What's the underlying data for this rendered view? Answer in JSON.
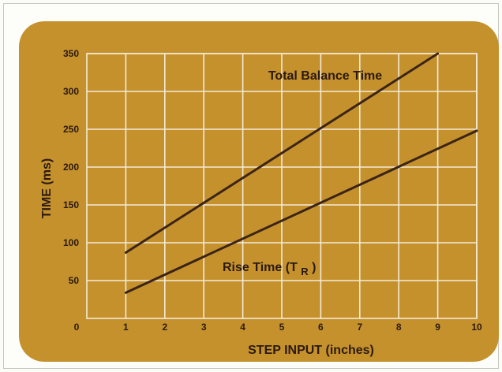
{
  "chart_data": {
    "type": "line",
    "title": "",
    "xlabel": "STEP INPUT (inches)",
    "ylabel": "TIME (ms)",
    "xlim": [
      0,
      10
    ],
    "ylim": [
      0,
      350
    ],
    "xticks": [
      "0",
      "1",
      "2",
      "3",
      "4",
      "5",
      "6",
      "7",
      "8",
      "9",
      "10"
    ],
    "yticks": [
      "50",
      "100",
      "150",
      "200",
      "250",
      "300",
      "350"
    ],
    "grid": true,
    "legend": "none",
    "series": [
      {
        "name": "Total Balance Time",
        "x": [
          1,
          9
        ],
        "y": [
          87,
          350
        ]
      },
      {
        "name": "Rise Time (T",
        "name_subscript": "R",
        "name_suffix": ")",
        "x": [
          1,
          10
        ],
        "y": [
          34,
          248
        ]
      }
    ]
  },
  "colors": {
    "panel": "#c4912d",
    "grid": "#f3ebd8",
    "lines": "#3b2417",
    "text": "#2c1a10"
  }
}
